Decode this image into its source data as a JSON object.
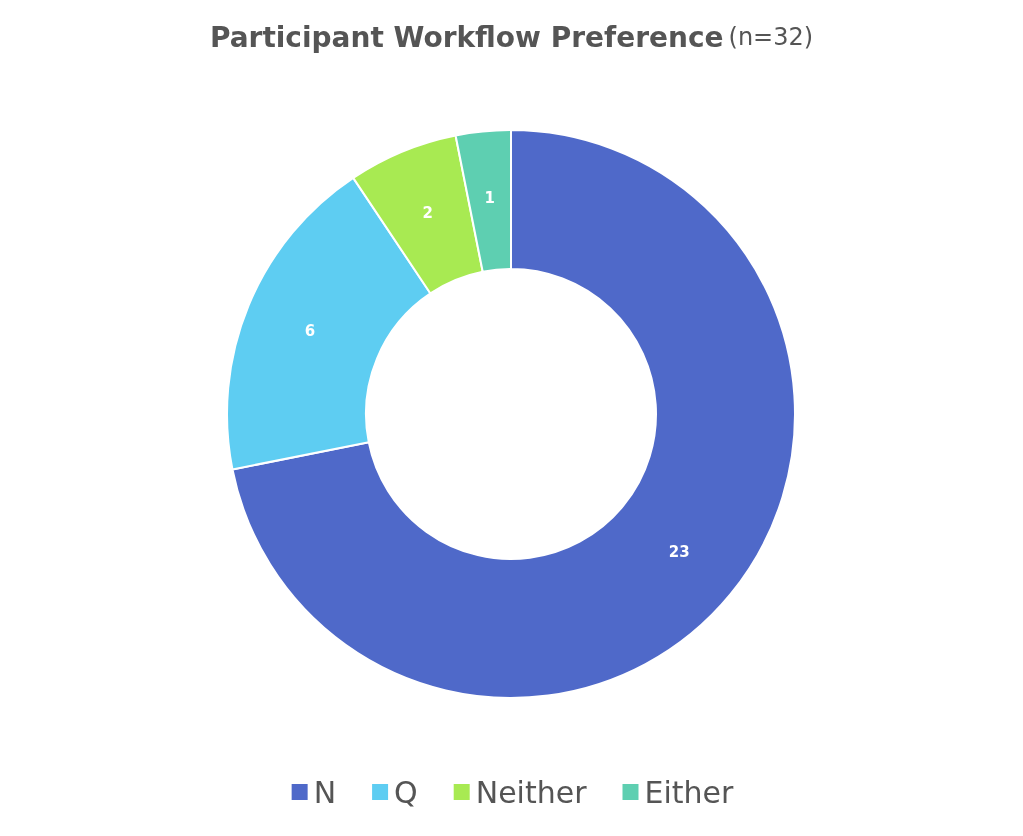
{
  "chart_data": {
    "type": "donut",
    "title": "Participant Workflow Preference",
    "subtitle": "(n=32)",
    "categories": [
      "N",
      "Q",
      "Neither",
      "Either"
    ],
    "values": [
      23,
      6,
      2,
      1
    ],
    "colors": [
      "#4f69c9",
      "#5ecdf2",
      "#a8ea52",
      "#5ecfb1"
    ],
    "data_labels": true,
    "legend": "bottom"
  }
}
